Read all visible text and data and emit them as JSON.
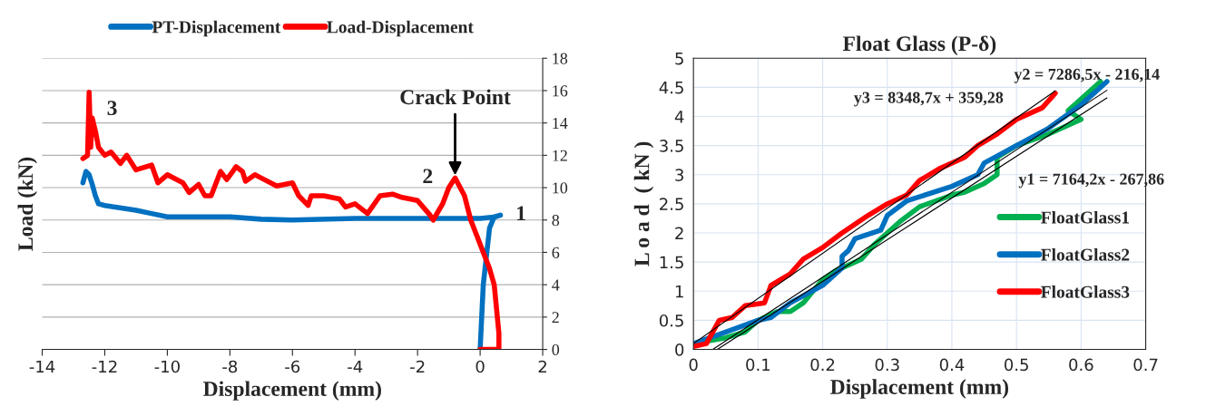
{
  "chart_data": [
    {
      "type": "line",
      "xlabel": "Displacement (mm)",
      "ylabel": "Load (kN)",
      "xlim": [
        -14,
        2
      ],
      "xticks": [
        -14,
        -12,
        -10,
        -8,
        -6,
        -4,
        -2,
        0,
        2
      ],
      "ylim": [
        0,
        18
      ],
      "yticks": [
        0,
        2,
        4,
        6,
        8,
        10,
        12,
        14,
        16,
        18
      ],
      "grid": "y",
      "legend": "top",
      "series": [
        {
          "name": "PT-Displacement",
          "color": "#0070c0",
          "x": [
            0,
            0.1,
            0.3,
            0.45,
            0.65,
            0.5,
            0,
            -2,
            -4,
            -6,
            -7,
            -8,
            -9,
            -10,
            -10.5,
            -11,
            -12,
            -12.2,
            -12.3,
            -12.4,
            -12.5,
            -12.6,
            -12.7
          ],
          "values": [
            0,
            4,
            7.5,
            8.2,
            8.3,
            8.2,
            8.1,
            8.1,
            8.1,
            8.0,
            8.05,
            8.2,
            8.2,
            8.2,
            8.4,
            8.6,
            8.9,
            9.0,
            9.5,
            10.2,
            10.8,
            11.0,
            10.3
          ]
        },
        {
          "name": "Load-Displacement",
          "color": "#ff0000",
          "x": [
            0,
            0.6,
            0.6,
            0.55,
            0.45,
            0.3,
            0.1,
            -0.1,
            -0.3,
            -0.5,
            -0.8,
            -1,
            -1.2,
            -1.5,
            -1.6,
            -2,
            -2.5,
            -2.8,
            -3.2,
            -3.6,
            -4,
            -4.3,
            -4.5,
            -5,
            -5.4,
            -5.5,
            -5.8,
            -6,
            -6.5,
            -7,
            -7.2,
            -7.5,
            -7.6,
            -7.8,
            -8.1,
            -8.3,
            -8.6,
            -8.8,
            -9,
            -9.3,
            -9.5,
            -10,
            -10.3,
            -10.5,
            -11,
            -11.3,
            -11.5,
            -11.8,
            -12,
            -12.2,
            -12.3,
            -12.4,
            -12.45,
            -12.5,
            -12.55,
            -12.7
          ],
          "values": [
            0,
            0,
            1,
            2,
            4,
            5,
            6,
            7,
            8,
            9.5,
            10.6,
            10,
            9,
            8,
            8.3,
            9.2,
            9.4,
            9.6,
            9.5,
            8.4,
            9.0,
            8.8,
            9.3,
            9.5,
            9.5,
            8.9,
            9.5,
            10.3,
            10.1,
            10.6,
            10.8,
            10.4,
            11.0,
            11.3,
            10.5,
            11.0,
            9.5,
            9.5,
            10.2,
            9.7,
            10.3,
            10.8,
            10.3,
            11.4,
            11.1,
            12.0,
            11.5,
            12.2,
            12.0,
            12.5,
            13.5,
            14.3,
            12.5,
            15.9,
            12.0,
            11.8
          ]
        }
      ],
      "annotations": [
        {
          "text": "1",
          "x": 0.65,
          "y": 8.3
        },
        {
          "text": "2",
          "x": -0.8,
          "y": 10.6
        },
        {
          "text": "3",
          "x": -12.5,
          "y": 15.9
        },
        {
          "text": "Crack Point",
          "x": -0.8,
          "y": 10.6
        }
      ]
    },
    {
      "type": "line",
      "title": "Float Glass (P-δ)",
      "xlabel": "Displacement (mm)",
      "ylabel": "L o a d  ( kN )",
      "xlim": [
        0,
        0.7
      ],
      "xticks": [
        0,
        0.1,
        0.2,
        0.3,
        0.4,
        0.5,
        0.6,
        0.7
      ],
      "ylim": [
        0,
        5
      ],
      "yticks": [
        0,
        0.5,
        1,
        1.5,
        2,
        2.5,
        3,
        3.5,
        4,
        4.5,
        5
      ],
      "grid": true,
      "legend": "right",
      "series": [
        {
          "name": "FloatGlass1",
          "color": "#00b050",
          "x": [
            0,
            0.05,
            0.08,
            0.1,
            0.13,
            0.15,
            0.17,
            0.2,
            0.22,
            0.25,
            0.26,
            0.28,
            0.3,
            0.32,
            0.35,
            0.4,
            0.42,
            0.45,
            0.47,
            0.47,
            0.5,
            0.55,
            0.6,
            0.58,
            0.63
          ],
          "values": [
            0.1,
            0.2,
            0.3,
            0.5,
            0.65,
            0.65,
            0.8,
            1.2,
            1.35,
            1.5,
            1.55,
            1.8,
            2.0,
            2.2,
            2.45,
            2.65,
            2.7,
            2.85,
            3.0,
            3.3,
            3.5,
            3.7,
            3.95,
            4.1,
            4.6
          ]
        },
        {
          "name": "FloatGlass2",
          "color": "#0070c0",
          "x": [
            0,
            0.05,
            0.1,
            0.12,
            0.15,
            0.2,
            0.23,
            0.23,
            0.24,
            0.25,
            0.29,
            0.3,
            0.33,
            0.4,
            0.44,
            0.45,
            0.5,
            0.55,
            0.6,
            0.64
          ],
          "values": [
            0.1,
            0.3,
            0.5,
            0.55,
            0.8,
            1.1,
            1.4,
            1.6,
            1.7,
            1.9,
            2.05,
            2.3,
            2.55,
            2.8,
            3.0,
            3.2,
            3.5,
            3.8,
            4.2,
            4.6
          ]
        },
        {
          "name": "FloatGlass3",
          "color": "#ff0000",
          "x": [
            0,
            0.02,
            0.04,
            0.06,
            0.08,
            0.11,
            0.12,
            0.15,
            0.17,
            0.2,
            0.23,
            0.27,
            0.3,
            0.33,
            0.35,
            0.38,
            0.42,
            0.44,
            0.47,
            0.5,
            0.54,
            0.56
          ],
          "values": [
            0.05,
            0.1,
            0.5,
            0.55,
            0.75,
            0.8,
            1.1,
            1.3,
            1.55,
            1.75,
            2.0,
            2.3,
            2.5,
            2.65,
            2.9,
            3.1,
            3.3,
            3.5,
            3.7,
            3.95,
            4.15,
            4.4
          ]
        },
        {
          "type": "line",
          "color": "#000000",
          "x": [
            0.037,
            0.64
          ],
          "values": [
            0,
            4.32
          ]
        },
        {
          "type": "line",
          "color": "#000000",
          "x": [
            0.03,
            0.64
          ],
          "values": [
            0,
            4.45
          ]
        },
        {
          "type": "line",
          "color": "#000000",
          "x": [
            0,
            0.56
          ],
          "values": [
            0.1,
            4.44
          ]
        }
      ],
      "annotations": [
        "y1 = 7164,2x - 267,86",
        "y2 = 7286,5x - 216,14",
        "y3 = 8348,7x + 359,28"
      ]
    }
  ]
}
